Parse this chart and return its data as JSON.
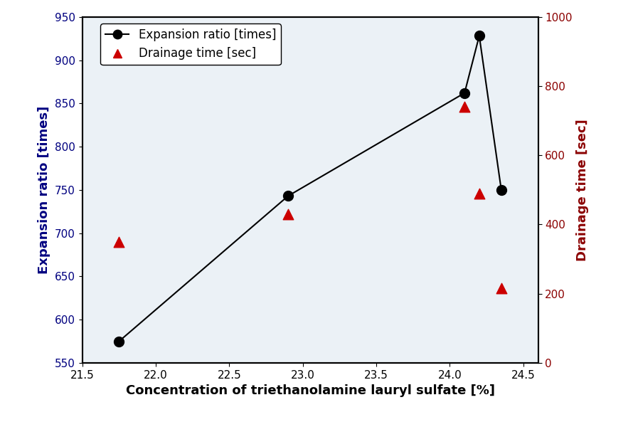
{
  "expansion_x": [
    21.75,
    22.9,
    24.1,
    24.2,
    24.35
  ],
  "expansion_y": [
    575,
    743,
    862,
    928,
    750
  ],
  "drainage_x": [
    21.75,
    22.9,
    24.1,
    24.2,
    24.35
  ],
  "drainage_y": [
    350,
    430,
    740,
    490,
    215
  ],
  "xlabel": "Concentration of triethanolamine lauryl sulfate [%]",
  "ylabel_left": "Expansion ratio [times]",
  "ylabel_right": "Drainage time [sec]",
  "xlim": [
    21.5,
    24.6
  ],
  "ylim_left": [
    550,
    950
  ],
  "ylim_right": [
    0,
    1000
  ],
  "xticks": [
    21.5,
    22.0,
    22.5,
    23.0,
    23.5,
    24.0,
    24.5
  ],
  "yticks_left": [
    550,
    600,
    650,
    700,
    750,
    800,
    850,
    900,
    950
  ],
  "yticks_right": [
    0,
    200,
    400,
    600,
    800,
    1000
  ],
  "legend_labels": [
    "Expansion ratio [times]",
    "Drainage time [sec]"
  ],
  "expansion_color": "#000000",
  "drainage_color": "#cc0000",
  "background_color": "#ffffff",
  "label_color_left": "#000080",
  "label_color_right": "#8b0000",
  "tick_color": "#000000",
  "xlabel_fontsize": 13,
  "ylabel_fontsize": 13,
  "tick_fontsize": 11,
  "legend_fontsize": 12,
  "watermark_color": "#c8d8e8",
  "watermark_alpha": 0.35
}
